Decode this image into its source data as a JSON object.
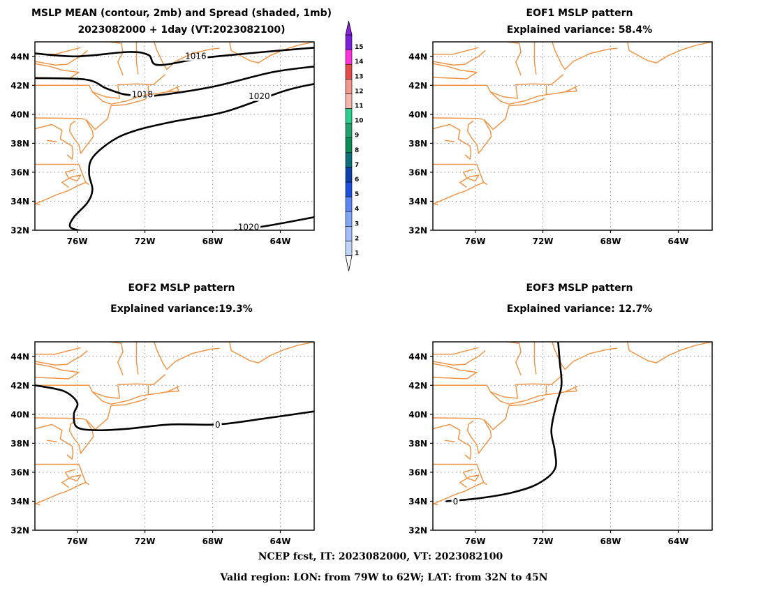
{
  "chart_data": [
    {
      "type": "contour-map",
      "title": "MSLP MEAN (contour, 2mb) and Spread (shaded, 1mb)",
      "subtitle": "2023082000 + 1day (VT:2023082100)",
      "xlim": [
        -78.5,
        -62
      ],
      "ylim": [
        32,
        45
      ],
      "x_ticks": [
        "76W",
        "72W",
        "68W",
        "64W"
      ],
      "y_ticks": [
        "44N",
        "42N",
        "40N",
        "38N",
        "36N",
        "34N",
        "32N"
      ],
      "grid": true,
      "contours": [
        {
          "level": 1016,
          "label": "1016",
          "points": [
            [
              -78.5,
              44.2
            ],
            [
              -76,
              44.0
            ],
            [
              -73,
              44.3
            ],
            [
              -71.8,
              44.1
            ],
            [
              -71.2,
              43.4
            ],
            [
              -68.5,
              43.9
            ],
            [
              -65,
              44.3
            ],
            [
              -62,
              44.6
            ]
          ]
        },
        {
          "level": 1018,
          "label": "1018",
          "points": [
            [
              -78.5,
              42.5
            ],
            [
              -75.5,
              42.4
            ],
            [
              -74.3,
              41.8
            ],
            [
              -73.3,
              41.4
            ],
            [
              -72.4,
              41.3
            ],
            [
              -71.3,
              41.3
            ],
            [
              -68,
              41.9
            ],
            [
              -64.5,
              42.9
            ],
            [
              -62,
              43.3
            ]
          ]
        },
        {
          "level": 1020,
          "label": "1020",
          "points": [
            [
              -75.5,
              31.9
            ],
            [
              -76.4,
              32.2
            ],
            [
              -76.2,
              32.9
            ],
            [
              -75.4,
              33.9
            ],
            [
              -75.1,
              34.8
            ],
            [
              -75.3,
              35.9
            ],
            [
              -75.1,
              37.0
            ],
            [
              -73.9,
              38.2
            ],
            [
              -72.5,
              38.9
            ],
            [
              -70.3,
              39.5
            ],
            [
              -67.2,
              40.2
            ],
            [
              -63.8,
              41.6
            ],
            [
              -62,
              42.1
            ]
          ]
        },
        {
          "level": 1020,
          "label": "1020",
          "points": [
            [
              -66.7,
              32.0
            ],
            [
              -64.8,
              32.3
            ],
            [
              -62,
              32.9
            ]
          ]
        }
      ],
      "colorbar": {
        "ticks": [
          "1",
          "2",
          "3",
          "4",
          "5",
          "6",
          "7",
          "8",
          "9",
          "10",
          "11",
          "12",
          "13",
          "14",
          "15"
        ],
        "colors": [
          "#bfd4f9",
          "#a1bdfa",
          "#7ea8f5",
          "#5e86f2",
          "#1c4fdb",
          "#0f3fa8",
          "#0b6f79",
          "#0e8a54",
          "#21a06a",
          "#2ecf8e",
          "#f4b6ad",
          "#f2978c",
          "#e34b4b",
          "#ff33dd",
          "#7a20d8"
        ],
        "end_colors": {
          "low": "#ffffff",
          "high": "#8d22e3"
        }
      }
    },
    {
      "type": "contour-map",
      "title": "EOF1 MSLP pattern",
      "subtitle": "Explained variance: 58.4%",
      "xlim": [
        -78.5,
        -62
      ],
      "ylim": [
        32,
        45
      ],
      "x_ticks": [
        "76W",
        "72W",
        "68W",
        "64W"
      ],
      "y_ticks": [
        "44N",
        "42N",
        "40N",
        "38N",
        "36N",
        "34N",
        "32N"
      ],
      "grid": true,
      "contours": []
    },
    {
      "type": "contour-map",
      "title": "EOF2 MSLP pattern",
      "subtitle": "Explained variance:19.3%",
      "xlim": [
        -78.5,
        -62
      ],
      "ylim": [
        32,
        45
      ],
      "x_ticks": [
        "76W",
        "72W",
        "68W",
        "64W"
      ],
      "y_ticks": [
        "44N",
        "42N",
        "40N",
        "38N",
        "36N",
        "34N",
        "32N"
      ],
      "grid": true,
      "contours": [
        {
          "level": 0,
          "label": "0",
          "points": [
            [
              -78.5,
              42.0
            ],
            [
              -76.8,
              41.6
            ],
            [
              -76.0,
              40.8
            ],
            [
              -76.2,
              40.0
            ],
            [
              -76.0,
              39.1
            ],
            [
              -74.8,
              38.9
            ],
            [
              -73.0,
              39.0
            ],
            [
              -70.5,
              39.3
            ],
            [
              -67.7,
              39.3
            ],
            [
              -65,
              39.7
            ],
            [
              -62,
              40.2
            ]
          ]
        }
      ]
    },
    {
      "type": "contour-map",
      "title": "EOF3 MSLP pattern",
      "subtitle": "Explained variance: 12.7%",
      "xlim": [
        -78.5,
        -62
      ],
      "ylim": [
        32,
        45
      ],
      "x_ticks": [
        "76W",
        "72W",
        "68W",
        "64W"
      ],
      "y_ticks": [
        "44N",
        "42N",
        "40N",
        "38N",
        "36N",
        "34N",
        "32N"
      ],
      "grid": true,
      "contours": [
        {
          "level": 0,
          "label": "0",
          "points": [
            [
              -77.7,
              34.0
            ],
            [
              -75.8,
              34.2
            ],
            [
              -73.8,
              34.6
            ],
            [
              -72.3,
              35.2
            ],
            [
              -71.3,
              36.2
            ],
            [
              -71.3,
              37.5
            ],
            [
              -71.5,
              38.9
            ],
            [
              -71.2,
              40.7
            ],
            [
              -70.9,
              42.0
            ],
            [
              -71.0,
              43.6
            ],
            [
              -71.1,
              45
            ]
          ]
        }
      ]
    }
  ],
  "footer": {
    "line1": "NCEP fcst, IT: 2023082000, VT: 2023082100",
    "line2": "Valid region: LON: from 79W to 62W; LAT: from 32N to 45N"
  },
  "colors": {
    "coastline": "#ef9548",
    "contour": "#000000",
    "grid": "#9a9a9a"
  }
}
